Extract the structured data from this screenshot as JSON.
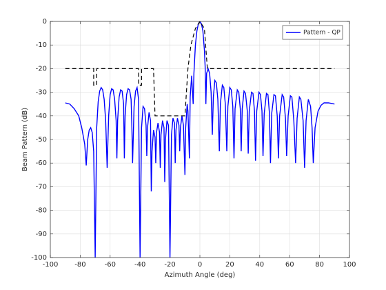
{
  "chart_data": {
    "type": "line",
    "xlabel": "Azimuth Angle (deg)",
    "ylabel": "Beam Pattern (dB)",
    "xlim": [
      -100,
      100
    ],
    "ylim": [
      -100,
      0
    ],
    "xticks": [
      -100,
      -80,
      -60,
      -40,
      -20,
      0,
      20,
      40,
      60,
      80,
      100
    ],
    "yticks": [
      0,
      -10,
      -20,
      -30,
      -40,
      -50,
      -60,
      -70,
      -80,
      -90,
      -100
    ],
    "grid": true,
    "legend": "upper right",
    "series": [
      {
        "name": "Pattern - QP",
        "color": "#0000ff",
        "linestyle": "solid",
        "x": [
          -90,
          -87,
          -84,
          -81,
          -79,
          -77,
          -76,
          -75,
          -74,
          -73,
          -72,
          -71,
          -70,
          -69,
          -68,
          -67,
          -66,
          -65,
          -64,
          -63,
          -62,
          -61,
          -60,
          -59,
          -58,
          -57,
          -56,
          -55.5,
          -55,
          -54,
          -53,
          -52,
          -51,
          -50.5,
          -50,
          -49,
          -48,
          -47,
          -46,
          -45.5,
          -45,
          -44,
          -43,
          -42,
          -41,
          -40,
          -39,
          -38,
          -37,
          -36,
          -35.5,
          -35,
          -34,
          -33,
          -32.5,
          -32,
          -31,
          -30,
          -29.5,
          -29,
          -28,
          -27,
          -26.5,
          -26,
          -25,
          -24,
          -23.5,
          -23,
          -22,
          -21,
          -20,
          -19,
          -18,
          -17,
          -16.5,
          -16,
          -15,
          -14,
          -13.5,
          -13,
          -12,
          -11,
          -10,
          -9.5,
          -8.5,
          -8,
          -7,
          -6.5,
          -5.5,
          -4.5,
          -4,
          -3,
          -2,
          -1,
          0,
          1,
          2,
          3,
          3.5,
          4,
          4.5,
          5.5,
          6.5,
          7.5,
          8.3,
          9,
          10,
          11,
          12,
          13,
          13.7,
          15,
          16,
          17,
          18,
          18.7,
          20,
          21,
          22,
          22.8,
          23.5,
          25,
          26,
          27,
          27.6,
          28.3,
          29.5,
          30.5,
          31.7,
          32.3,
          33,
          34.5,
          35.5,
          36.5,
          37.2,
          38,
          39.5,
          40.5,
          41.5,
          42.2,
          43,
          44.5,
          45.5,
          46.5,
          47.2,
          48,
          49.5,
          50.5,
          51.7,
          52.5,
          53.3,
          55,
          56,
          57.2,
          58,
          59,
          60.5,
          61.5,
          62.8,
          64,
          65,
          66.5,
          67.5,
          69,
          70,
          71,
          72.5,
          74,
          75,
          75.8,
          77,
          79,
          81,
          83,
          86,
          90
        ],
        "values": [
          -34.5,
          -35,
          -37,
          -40,
          -45,
          -52,
          -61,
          -50,
          -46,
          -45,
          -47,
          -55,
          -100,
          -45,
          -34,
          -29.5,
          -28,
          -29,
          -33,
          -42,
          -62,
          -40,
          -31,
          -28.5,
          -29,
          -33,
          -42,
          -58,
          -42,
          -32,
          -29,
          -29.5,
          -35,
          -58,
          -40,
          -31,
          -28.5,
          -29,
          -33,
          -44,
          -60,
          -36,
          -29.5,
          -28,
          -33,
          -100,
          -45,
          -36,
          -37,
          -44,
          -57,
          -45,
          -38.5,
          -42,
          -72,
          -55,
          -46,
          -49,
          -60,
          -47,
          -43,
          -47,
          -62,
          -48,
          -42,
          -45,
          -68,
          -50,
          -42,
          -44,
          -100,
          -48,
          -41,
          -43,
          -60,
          -46,
          -41,
          -44,
          -55,
          -45,
          -40,
          -44,
          -65,
          -45,
          -35,
          -38,
          -58,
          -32,
          -23,
          -35,
          -22,
          -10,
          -4,
          -1,
          0,
          -1,
          -4,
          -12,
          -19,
          -35,
          -22,
          -20,
          -22,
          -30,
          -48,
          -32,
          -25,
          -26,
          -33,
          -55,
          -35,
          -27,
          -28,
          -35,
          -55,
          -36,
          -28,
          -29,
          -36,
          -58,
          -37,
          -29,
          -30,
          -37,
          -55,
          -37,
          -29.5,
          -30.5,
          -38,
          -56,
          -38,
          -30,
          -30.5,
          -38,
          -59,
          -38,
          -30,
          -31,
          -38,
          -57,
          -39,
          -30.5,
          -31,
          -39,
          -60,
          -39,
          -31,
          -31.5,
          -40,
          -58,
          -40,
          -31,
          -32,
          -41,
          -57,
          -40,
          -31.5,
          -32,
          -42,
          -60,
          -41,
          -32,
          -33,
          -42,
          -62,
          -42,
          -33,
          -36,
          -45,
          -60,
          -45,
          -38,
          -35.5,
          -34.5,
          -34.5,
          -35
        ]
      },
      {
        "color": "#000000",
        "linestyle": "dashed",
        "x": [
          -90,
          -71,
          -71,
          -69,
          -69,
          -41,
          -41,
          -39,
          -39,
          -31,
          -30,
          -10,
          -8,
          -6,
          -3,
          0,
          3,
          5,
          90
        ],
        "values": [
          -20,
          -20,
          -27,
          -27,
          -20,
          -20,
          -27,
          -27,
          -20,
          -20,
          -40,
          -40,
          -20,
          -10,
          -3,
          0,
          -3,
          -20,
          -20
        ]
      }
    ]
  }
}
